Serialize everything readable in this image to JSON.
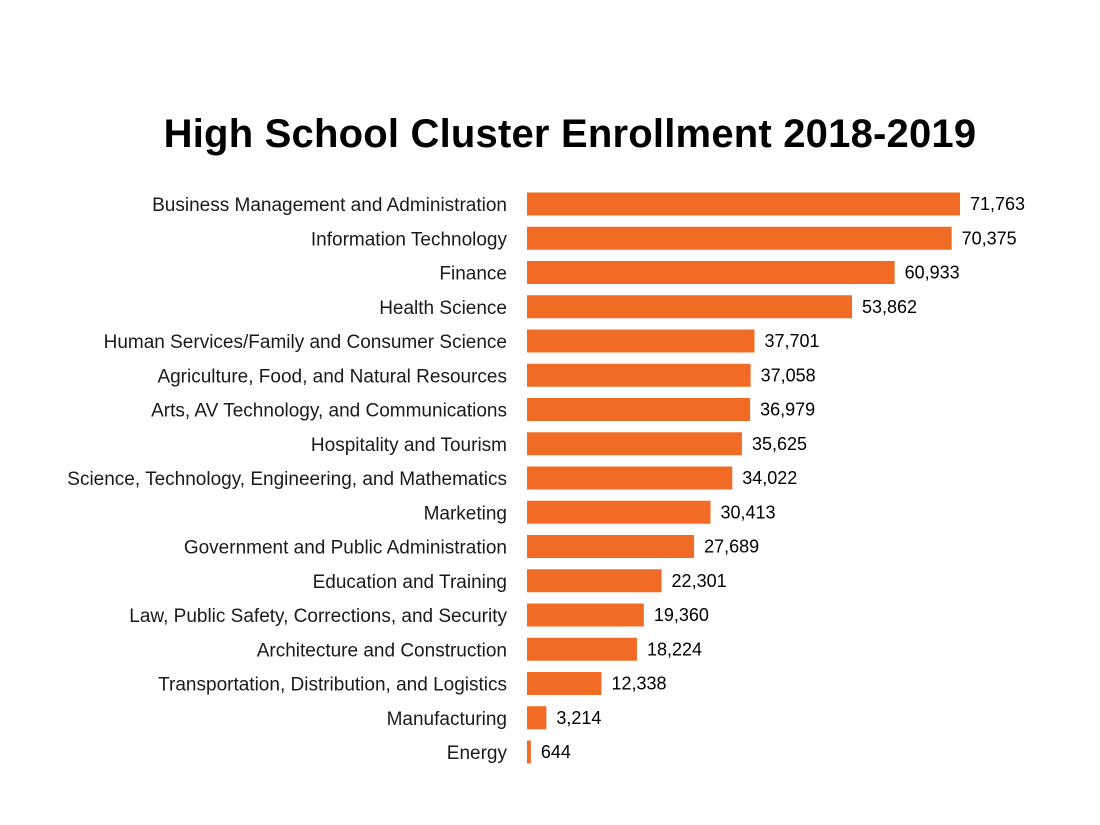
{
  "chart_data": {
    "type": "bar",
    "orientation": "horizontal",
    "title": "High School Cluster Enrollment 2018-2019",
    "xlabel": "",
    "ylabel": "",
    "xlim": [
      0,
      71763
    ],
    "grid": false,
    "legend": "none",
    "bar_color": "#F26B25",
    "categories": [
      "Business Management and Administration",
      "Information Technology",
      "Finance",
      "Health Science",
      "Human Services/Family and Consumer Science",
      "Agriculture, Food, and Natural Resources",
      "Arts, AV Technology, and Communications",
      "Hospitality and Tourism",
      "Science, Technology, Engineering, and Mathematics",
      "Marketing",
      "Government and Public Administration",
      "Education and Training",
      "Law, Public Safety, Corrections, and Security",
      "Architecture and Construction",
      "Transportation, Distribution, and Logistics",
      "Manufacturing",
      "Energy"
    ],
    "values": [
      71763,
      70375,
      60933,
      53862,
      37701,
      37058,
      36979,
      35625,
      34022,
      30413,
      27689,
      22301,
      19360,
      18224,
      12338,
      3214,
      644
    ],
    "value_labels": [
      "71,763",
      "70,375",
      "60,933",
      "53,862",
      "37,701",
      "37,058",
      "36,979",
      "35,625",
      "34,022",
      "30,413",
      "27,689",
      "22,301",
      "19,360",
      "18,224",
      "12,338",
      "3,214",
      "644"
    ]
  }
}
